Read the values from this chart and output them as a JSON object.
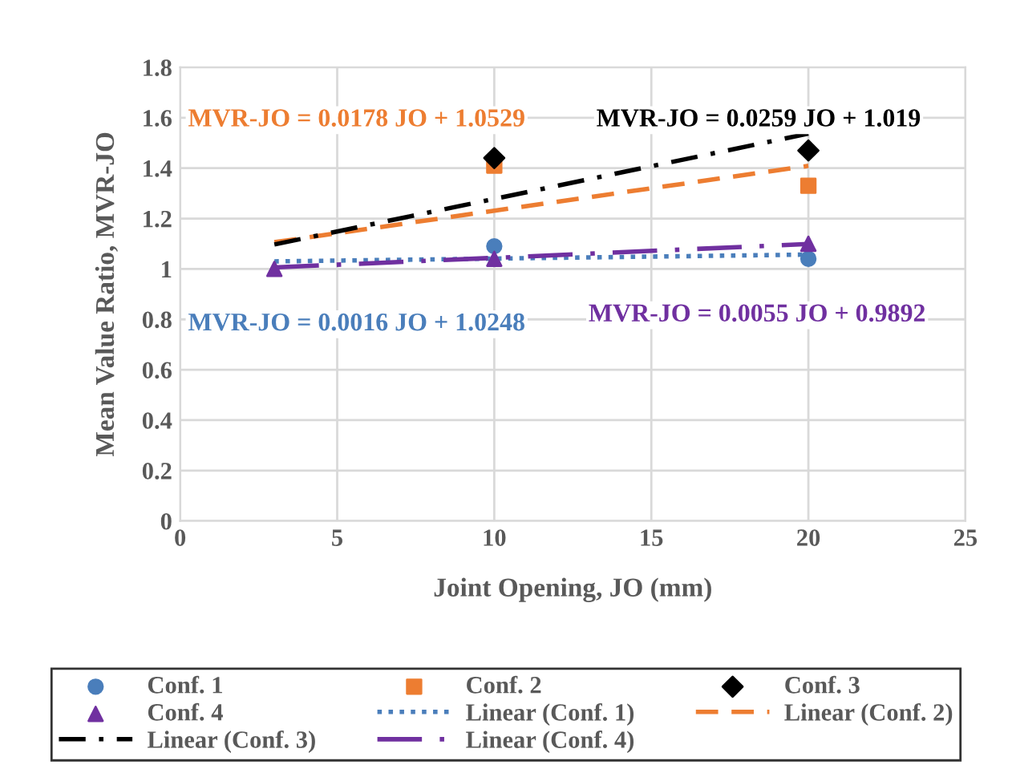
{
  "chart_data": {
    "type": "scatter",
    "xlabel": "Joint Opening, JO (mm)",
    "ylabel": "Mean Value Ratio, MVR-JO",
    "xlim": [
      0,
      25
    ],
    "xticks": [
      0,
      5,
      10,
      15,
      20,
      25
    ],
    "ylim": [
      0,
      1.8
    ],
    "yticks": [
      0,
      0.2,
      0.4,
      0.6,
      0.8,
      1,
      1.2,
      1.4,
      1.6,
      1.8
    ],
    "grid": true,
    "legend": "bottom",
    "x": [
      3,
      10,
      20
    ],
    "series": [
      {
        "name": "Conf. 1",
        "color": "#4a7ebb",
        "marker": "circle",
        "values": [
          null,
          1.09,
          1.04
        ]
      },
      {
        "name": "Conf. 2",
        "color": "#ed7d31",
        "marker": "square",
        "values": [
          null,
          1.41,
          1.33
        ]
      },
      {
        "name": "Conf. 3",
        "color": "#000000",
        "marker": "diamond",
        "values": [
          null,
          1.44,
          1.47
        ]
      },
      {
        "name": "Conf. 4",
        "color": "#7030a0",
        "marker": "triangle",
        "values": [
          1.0,
          1.04,
          1.1
        ]
      },
      {
        "name": "Linear (Conf. 1)",
        "type": "line",
        "color": "#4a7ebb",
        "line_style": "dotted",
        "values": [
          1.03,
          1.041,
          1.057
        ]
      },
      {
        "name": "Linear (Conf. 2)",
        "type": "line",
        "color": "#ed7d31",
        "line_style": "dashed",
        "values": [
          1.106,
          1.231,
          1.409
        ]
      },
      {
        "name": "Linear (Conf. 3)",
        "type": "line",
        "color": "#000000",
        "line_style": "dashdot",
        "values": [
          1.097,
          1.278,
          1.537
        ]
      },
      {
        "name": "Linear (Conf. 4)",
        "type": "line",
        "color": "#7030a0",
        "line_style": "longdashdot",
        "values": [
          1.006,
          1.044,
          1.099
        ]
      }
    ],
    "annotations": [
      "MVR-JO = 0.0016 JO + 1.0248",
      "MVR-JO = 0.0178 JO + 1.0529",
      "MVR-JO = 0.0259 JO + 1.019",
      "MVR-JO = 0.0055 JO + 0.9892"
    ]
  }
}
